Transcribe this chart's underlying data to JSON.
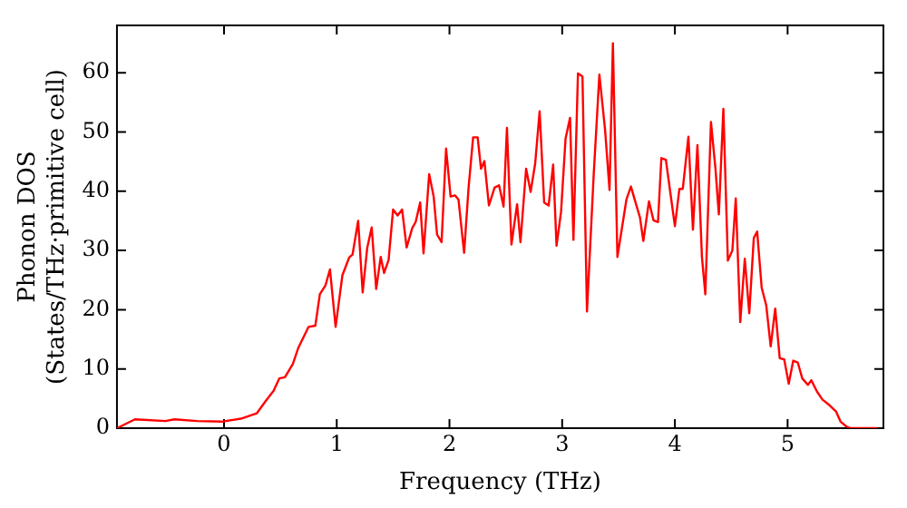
{
  "chart_data": {
    "type": "line",
    "xlabel": "Frequency (THz)",
    "ylabel": "Phonon DOS\n(States/THz·primitive cell)",
    "xlim": [
      -0.95,
      5.85
    ],
    "ylim": [
      0,
      68
    ],
    "xticks": [
      0,
      1,
      2,
      3,
      4,
      5
    ],
    "yticks": [
      0,
      10,
      20,
      30,
      40,
      50,
      60
    ],
    "grid": false,
    "legend": false,
    "marker": "none",
    "line_style": "solid",
    "series": [
      {
        "color": "#ff0000",
        "x": [
          -0.95,
          -0.79,
          -0.52,
          -0.44,
          -0.24,
          -0.02,
          0.15,
          0.29,
          0.37,
          0.44,
          0.49,
          0.54,
          0.61,
          0.66,
          0.75,
          0.81,
          0.85,
          0.9,
          0.94,
          0.99,
          1.05,
          1.11,
          1.14,
          1.19,
          1.23,
          1.27,
          1.31,
          1.35,
          1.39,
          1.42,
          1.46,
          1.5,
          1.54,
          1.58,
          1.62,
          1.67,
          1.7,
          1.74,
          1.77,
          1.82,
          1.86,
          1.89,
          1.93,
          1.97,
          2.01,
          2.05,
          2.08,
          2.13,
          2.17,
          2.21,
          2.25,
          2.28,
          2.31,
          2.35,
          2.4,
          2.44,
          2.48,
          2.51,
          2.55,
          2.6,
          2.63,
          2.68,
          2.72,
          2.76,
          2.8,
          2.84,
          2.88,
          2.92,
          2.95,
          2.99,
          3.03,
          3.07,
          3.1,
          3.14,
          3.18,
          3.22,
          3.28,
          3.33,
          3.38,
          3.42,
          3.45,
          3.49,
          3.57,
          3.61,
          3.66,
          3.69,
          3.72,
          3.77,
          3.81,
          3.85,
          3.88,
          3.92,
          3.96,
          4.0,
          4.04,
          4.07,
          4.12,
          4.16,
          4.2,
          4.24,
          4.27,
          4.32,
          4.36,
          4.39,
          4.43,
          4.47,
          4.51,
          4.54,
          4.58,
          4.62,
          4.66,
          4.7,
          4.73,
          4.77,
          4.81,
          4.85,
          4.89,
          4.93,
          4.97,
          5.01,
          5.05,
          5.09,
          5.13,
          5.18,
          5.21,
          5.26,
          5.31,
          5.37,
          5.43,
          5.47,
          5.52,
          5.56,
          5.8
        ],
        "values": [
          0,
          1.5,
          1.2,
          1.5,
          1.2,
          1.1,
          1.6,
          2.5,
          4.6,
          6.3,
          8.4,
          8.6,
          10.8,
          13.6,
          17.1,
          17.3,
          22.6,
          24.1,
          26.8,
          17.1,
          25.8,
          28.8,
          29.3,
          35,
          22.9,
          30.4,
          33.9,
          23.5,
          28.9,
          26.2,
          28.4,
          36.9,
          35.9,
          36.9,
          30.5,
          33.8,
          34.8,
          38.1,
          29.5,
          42.9,
          39.1,
          32.7,
          31.4,
          47.2,
          39.1,
          39.3,
          38.6,
          29.6,
          40.7,
          49.1,
          49.1,
          43.8,
          45.1,
          37.6,
          40.6,
          41,
          37.4,
          50.7,
          31,
          37.8,
          31.4,
          43.8,
          39.9,
          44.6,
          53.5,
          38.1,
          37.6,
          44.5,
          30.8,
          36.5,
          48.9,
          52.4,
          31.8,
          59.9,
          59.4,
          19.7,
          42.9,
          59.7,
          50.5,
          40.2,
          65,
          28.9,
          38.6,
          40.8,
          37.5,
          35.6,
          31.6,
          38.3,
          35.1,
          34.8,
          45.6,
          45.3,
          39.7,
          34.1,
          40.4,
          40.4,
          49.2,
          33.5,
          47.8,
          28.9,
          22.6,
          51.7,
          43.8,
          36.1,
          53.9,
          28.3,
          30,
          38.8,
          17.9,
          28.6,
          19.4,
          32.1,
          33.2,
          23.7,
          20.8,
          13.8,
          20.2,
          11.8,
          11.6,
          7.5,
          11.4,
          11.1,
          8.4,
          7.3,
          8.1,
          6.2,
          4.8,
          3.9,
          2.8,
          1.1,
          0.3,
          0,
          0
        ]
      }
    ]
  }
}
